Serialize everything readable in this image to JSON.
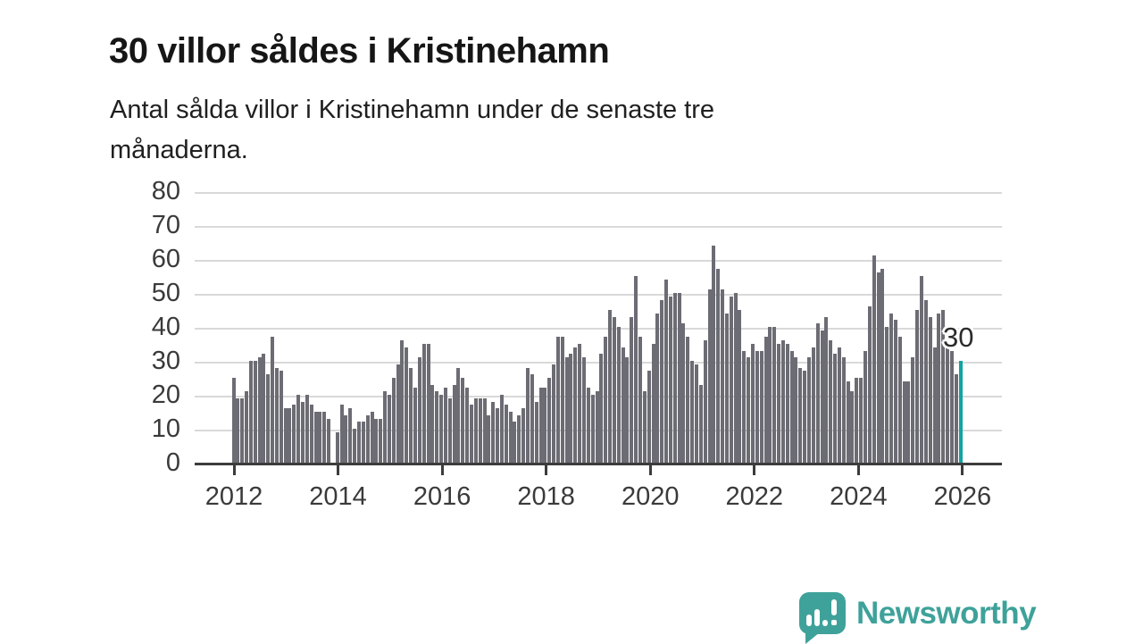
{
  "title": "30 villor såldes i Kristinehamn",
  "subtitle": "Antal sålda villor i Kristinehamn under de senaste tre månaderna.",
  "subtitle_lines": [
    "Antal sålda villor i Kristinehamn under de senaste tre",
    "månaderna."
  ],
  "branding": {
    "logo_text": "Newsworthy",
    "logo_icon": "speech-bubble-bar-chart-exclamation",
    "logo_color": "#3ea29a"
  },
  "chart_data": {
    "type": "bar",
    "title": "",
    "xlabel": "",
    "ylabel": "",
    "start_period": "2012-01",
    "end_period": "2026-01",
    "frequency": "monthly",
    "x_tick_years": [
      2012,
      2014,
      2016,
      2018,
      2020,
      2022,
      2024,
      2026
    ],
    "y_ticks": [
      0,
      10,
      20,
      30,
      40,
      50,
      60,
      70,
      80
    ],
    "ylim": [
      0,
      80
    ],
    "grid": true,
    "values": [
      25,
      19,
      19,
      21,
      30,
      30,
      31,
      32,
      26,
      37,
      28,
      27,
      16,
      16,
      17,
      20,
      18,
      20,
      17,
      15,
      15,
      15,
      13,
      null,
      9,
      17,
      14,
      16,
      10,
      12,
      12,
      14,
      15,
      13,
      13,
      21,
      20,
      25,
      29,
      36,
      34,
      28,
      22,
      31,
      35,
      35,
      23,
      21,
      20,
      22,
      19,
      23,
      28,
      25,
      22,
      17,
      19,
      19,
      19,
      14,
      18,
      16,
      20,
      17,
      15,
      12,
      14,
      16,
      28,
      26,
      18,
      22,
      22,
      25,
      29,
      37,
      37,
      31,
      32,
      34,
      35,
      31,
      22,
      20,
      21,
      32,
      37,
      45,
      43,
      40,
      34,
      31,
      43,
      55,
      37,
      21,
      27,
      35,
      44,
      48,
      54,
      49,
      50,
      50,
      41,
      37,
      30,
      29,
      23,
      36,
      51,
      64,
      57,
      51,
      44,
      49,
      50,
      45,
      33,
      31,
      35,
      33,
      33,
      37,
      40,
      40,
      35,
      36,
      35,
      33,
      31,
      28,
      27,
      31,
      34,
      41,
      39,
      43,
      36,
      32,
      34,
      31,
      24,
      21,
      25,
      25,
      33,
      46,
      61,
      56,
      57,
      40,
      44,
      42,
      37,
      24,
      24,
      31,
      45,
      55,
      48,
      43,
      34,
      44,
      45,
      34,
      33,
      26,
      30
    ],
    "highlight_last_bar": true,
    "last_value_label": "30",
    "colors": {
      "bar": "#6c6c74",
      "highlight": "#10a4a1",
      "grid": "#d9d9d9",
      "axis": "#3c3c3c",
      "tick_label": "#3a3a3a"
    }
  }
}
